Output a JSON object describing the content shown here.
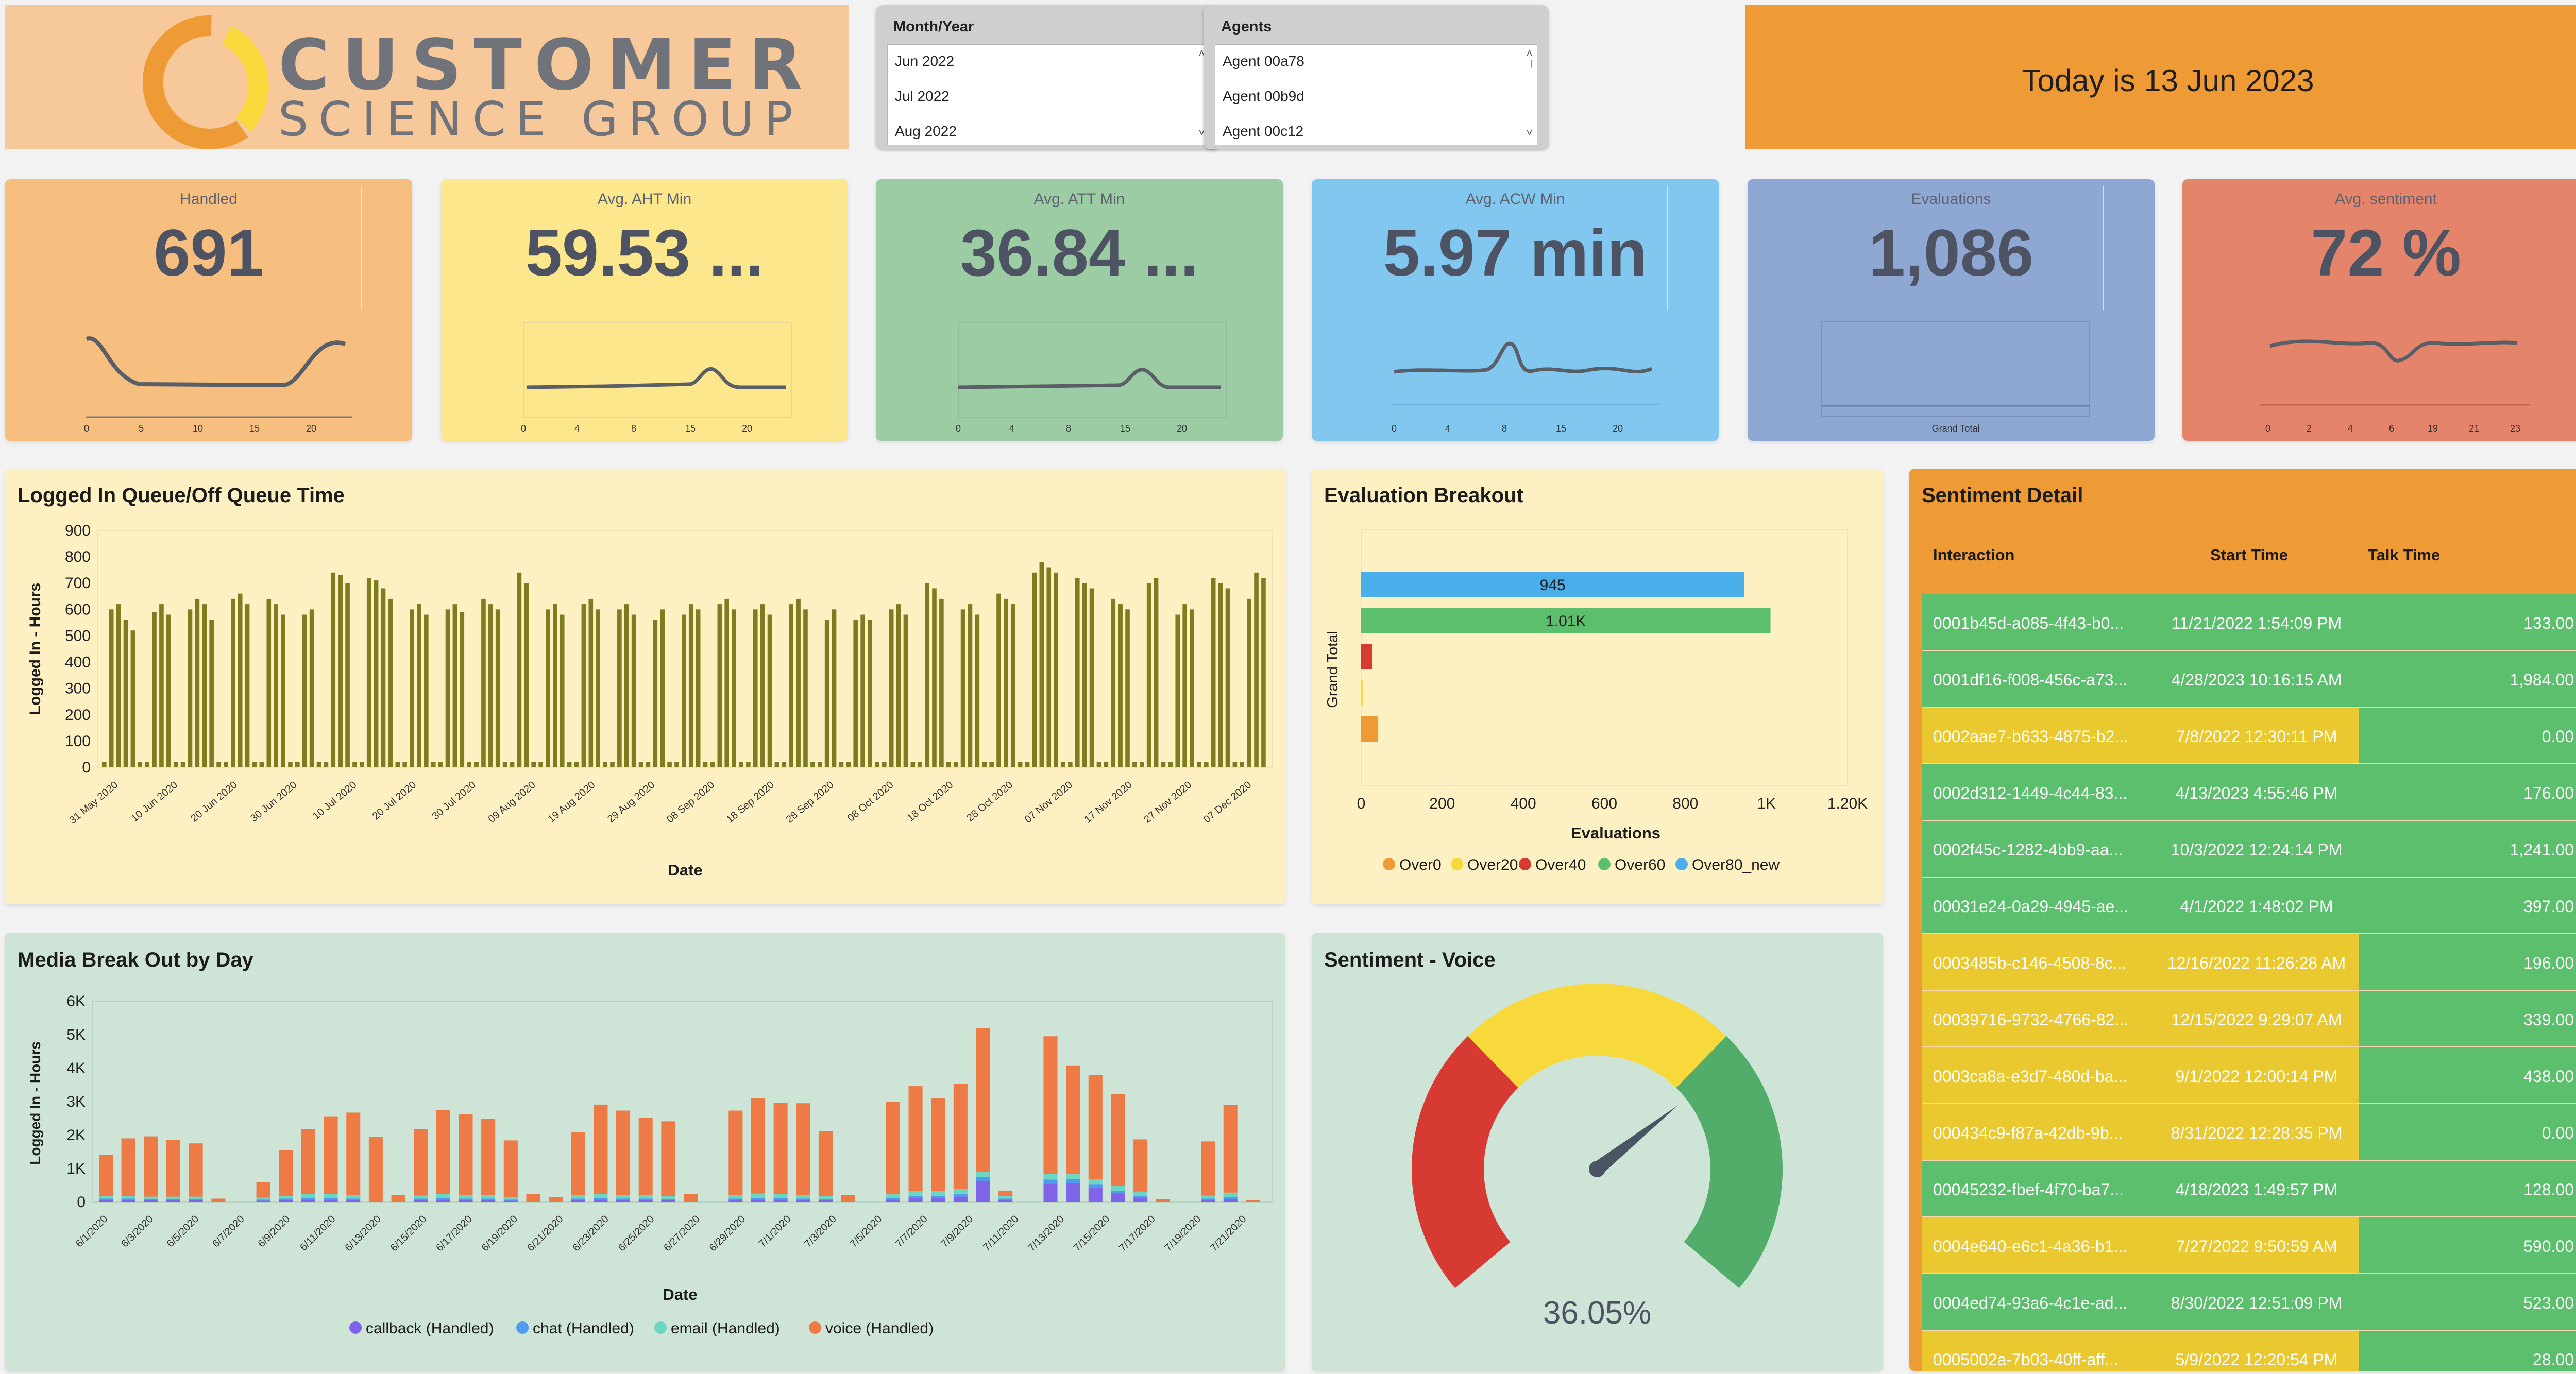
{
  "logo": {
    "line1": "CUSTOMER",
    "line2": "SCIENCE GROUP"
  },
  "filters": {
    "month": {
      "title": "Month/Year",
      "items": [
        "Jun 2022",
        "Jul 2022",
        "Aug 2022"
      ]
    },
    "agents": {
      "title": "Agents",
      "items": [
        "Agent 00a78",
        "Agent 00b9d",
        "Agent 00c12"
      ]
    }
  },
  "today": "Today is 13 Jun 2023",
  "colors": {
    "orange_light": "#f6bf80",
    "yellow": "#fce78c",
    "green": "#9ccca4",
    "blue": "#81c7f0",
    "slate": "#8ea8d3",
    "salmon": "#e4856b",
    "gauge_red": "#d63a33",
    "gauge_yellow": "#f8d93c",
    "gauge_green": "#52ad6b",
    "bar_olive": "#7d7d1f",
    "voice": "#ee7a45",
    "callback": "#7f63e8",
    "chat": "#4f9bf0",
    "email": "#6dd6c2",
    "row_green": "#5cbf6d",
    "row_yellow": "#eac830"
  },
  "kpis": [
    {
      "label": "Handled",
      "value": "691",
      "ticks": [
        "0",
        "5",
        "10",
        "15",
        "20"
      ]
    },
    {
      "label": "Avg. AHT Min",
      "value": "59.53 ...",
      "ticks": [
        "0",
        "4",
        "8",
        "15",
        "20"
      ]
    },
    {
      "label": "Avg. ATT Min",
      "value": "36.84 ...",
      "ticks": [
        "0",
        "4",
        "8",
        "15",
        "20"
      ]
    },
    {
      "label": "Avg. ACW Min",
      "value": "5.97 min",
      "ticks": [
        "0",
        "4",
        "8",
        "15",
        "20"
      ]
    },
    {
      "label": "Evaluations",
      "value": "1,086",
      "ticks": [
        "Grand Total"
      ]
    },
    {
      "label": "Avg. sentiment",
      "value": "72 %",
      "ticks": [
        "0",
        "2",
        "4",
        "6",
        "19",
        "21",
        "23"
      ]
    }
  ],
  "chart_data": [
    {
      "type": "bar",
      "title": "Logged In Queue/Off Queue Time",
      "xlabel": "Date",
      "ylabel": "Logged In - Hours",
      "ylim": [
        0,
        900
      ],
      "yticks": [
        "0",
        "100",
        "200",
        "300",
        "400",
        "500",
        "600",
        "700",
        "800",
        "900"
      ],
      "xticklabels": [
        "31 May 2020",
        "10 Jun 2020",
        "20 Jun 2020",
        "30 Jun 2020",
        "10 Jul 2020",
        "20 Jul 2020",
        "30 Jul 2020",
        "09 Aug 2020",
        "19 Aug 2020",
        "29 Aug 2020",
        "08 Sep 2020",
        "18 Sep 2020",
        "28 Sep 2020",
        "08 Oct 2020",
        "18 Oct 2020",
        "28 Oct 2020",
        "07 Nov 2020",
        "17 Nov 2020",
        "27 Nov 2020",
        "07 Dec 2020"
      ],
      "values": [
        20,
        600,
        620,
        560,
        520,
        20,
        20,
        590,
        620,
        580,
        20,
        20,
        600,
        640,
        620,
        560,
        20,
        20,
        640,
        660,
        620,
        20,
        20,
        640,
        620,
        580,
        20,
        20,
        580,
        600,
        20,
        20,
        740,
        730,
        700,
        20,
        20,
        720,
        710,
        680,
        640,
        20,
        20,
        600,
        620,
        580,
        20,
        20,
        600,
        620,
        590,
        20,
        20,
        640,
        620,
        600,
        20,
        20,
        740,
        700,
        20,
        20,
        600,
        620,
        580,
        20,
        20,
        620,
        640,
        600,
        20,
        20,
        600,
        620,
        580,
        20,
        20,
        560,
        600,
        20,
        20,
        580,
        620,
        600,
        20,
        20,
        620,
        640,
        600,
        20,
        20,
        600,
        620,
        580,
        20,
        20,
        620,
        640,
        600,
        20,
        20,
        560,
        600,
        20,
        20,
        560,
        580,
        560,
        20,
        20,
        600,
        620,
        580,
        20,
        20,
        700,
        680,
        640,
        20,
        20,
        600,
        620,
        580,
        20,
        20,
        660,
        640,
        620,
        20,
        20,
        740,
        780,
        760,
        740,
        20,
        20,
        720,
        700,
        680,
        20,
        20,
        640,
        620,
        600,
        20,
        20,
        700,
        720,
        20,
        20,
        580,
        620,
        600,
        20,
        20,
        720,
        700,
        680,
        20,
        20,
        640,
        740,
        720
      ]
    },
    {
      "type": "bar",
      "orientation": "horizontal",
      "title": "Evaluation Breakout",
      "xlabel": "Evaluations",
      "ylabel": "Grand Total",
      "xlim": [
        0,
        1200
      ],
      "xticks": [
        "0",
        "200",
        "400",
        "600",
        "800",
        "1K",
        "1.20K"
      ],
      "series": [
        {
          "name": "Over0",
          "value": 42,
          "color": "#ee9a35"
        },
        {
          "name": "Over20",
          "value": 4,
          "color": "#f8d93c"
        },
        {
          "name": "Over40",
          "value": 28,
          "color": "#d63a33"
        },
        {
          "name": "Over60",
          "value": 1010,
          "color": "#5cbf6d",
          "label": "1.01K"
        },
        {
          "name": "Over80_new",
          "value": 945,
          "color": "#4aaeea",
          "label": "945"
        }
      ]
    },
    {
      "type": "bar",
      "stacked": true,
      "title": "Media Break Out by Day",
      "xlabel": "Date",
      "ylabel": "Logged In - Hours",
      "ylim": [
        0,
        6000
      ],
      "yticks": [
        "0",
        "1K",
        "2K",
        "3K",
        "4K",
        "5K",
        "6K"
      ],
      "xticklabels": [
        "6/1/2020",
        "6/3/2020",
        "6/5/2020",
        "6/7/2020",
        "6/9/2020",
        "6/11/2020",
        "6/13/2020",
        "6/15/2020",
        "6/17/2020",
        "6/19/2020",
        "6/21/2020",
        "6/23/2020",
        "6/25/2020",
        "6/27/2020",
        "6/29/2020",
        "7/1/2020",
        "7/3/2020",
        "7/5/2020",
        "7/7/2020",
        "7/9/2020",
        "7/11/2020",
        "7/13/2020",
        "7/15/2020",
        "7/17/2020",
        "7/19/2020",
        "7/21/2020"
      ],
      "series": [
        {
          "name": "callback (Handled)",
          "color": "#7f63e8",
          "values": [
            60,
            60,
            50,
            50,
            50,
            0,
            0,
            40,
            60,
            70,
            70,
            60,
            0,
            0,
            60,
            70,
            60,
            60,
            40,
            0,
            0,
            60,
            70,
            60,
            60,
            50,
            0,
            0,
            60,
            70,
            70,
            60,
            50,
            0,
            0,
            70,
            120,
            120,
            160,
            620,
            60,
            0,
            550,
            560,
            420,
            260,
            130,
            0,
            0,
            60,
            90,
            0
          ]
        },
        {
          "name": "chat (Handled)",
          "color": "#4f9bf0",
          "values": [
            40,
            40,
            40,
            40,
            40,
            0,
            0,
            30,
            40,
            50,
            50,
            40,
            0,
            0,
            40,
            50,
            40,
            40,
            30,
            0,
            0,
            40,
            50,
            40,
            40,
            40,
            0,
            0,
            40,
            50,
            50,
            40,
            40,
            0,
            0,
            50,
            60,
            60,
            70,
            120,
            40,
            0,
            120,
            120,
            100,
            80,
            60,
            0,
            0,
            40,
            60,
            0
          ]
        },
        {
          "name": "email (Handled)",
          "color": "#6dd6c2",
          "values": [
            80,
            80,
            70,
            70,
            70,
            0,
            0,
            60,
            80,
            120,
            120,
            100,
            0,
            0,
            90,
            120,
            100,
            100,
            70,
            0,
            0,
            100,
            120,
            110,
            100,
            90,
            0,
            0,
            110,
            130,
            120,
            110,
            90,
            0,
            0,
            110,
            150,
            150,
            160,
            160,
            80,
            0,
            170,
            150,
            160,
            140,
            120,
            0,
            0,
            90,
            130,
            0
          ]
        },
        {
          "name": "voice (Handled)",
          "color": "#ee7a45",
          "values": [
            1220,
            1720,
            1800,
            1700,
            1590,
            100,
            0,
            470,
            1360,
            1930,
            2320,
            2470,
            1950,
            200,
            1980,
            2500,
            2420,
            2280,
            1700,
            240,
            150,
            1890,
            2670,
            2520,
            2320,
            2230,
            240,
            0,
            2520,
            2850,
            2720,
            2740,
            1940,
            200,
            0,
            2770,
            3130,
            2770,
            3140,
            4300,
            160,
            0,
            4110,
            3250,
            3110,
            2750,
            1560,
            80,
            0,
            1620,
            2620,
            60
          ]
        }
      ]
    },
    {
      "type": "gauge",
      "title": "Sentiment - Voice",
      "value": 36.05,
      "value_label": "36.05%",
      "bands": [
        {
          "color": "#d63a33",
          "share": 0.33
        },
        {
          "color": "#f8d93c",
          "share": 0.34
        },
        {
          "color": "#52ad6b",
          "share": 0.33
        }
      ]
    }
  ],
  "media_legend": [
    "callback (Handled)",
    "chat (Handled)",
    "email (Handled)",
    "voice (Handled)"
  ],
  "eval_legend": [
    "Over0",
    "Over20",
    "Over40",
    "Over60",
    "Over80_new"
  ],
  "sentiment": {
    "title": "Sentiment Detail",
    "columns": [
      "Interaction",
      "Start Time",
      "Talk Time"
    ],
    "rows": [
      {
        "id": "0001b45d-a085-4f43-b0...",
        "start": "11/21/2022 1:54:09 PM",
        "talk": "133.00",
        "color": "#5cbf6d"
      },
      {
        "id": "0001df16-f008-456c-a73...",
        "start": "4/28/2023 10:16:15 AM",
        "talk": "1,984.00",
        "color": "#5cbf6d"
      },
      {
        "id": "0002aae7-b633-4875-b2...",
        "start": "7/8/2022 12:30:11 PM",
        "talk": "0.00",
        "color": "#eac830"
      },
      {
        "id": "0002d312-1449-4c44-83...",
        "start": "4/13/2023 4:55:46 PM",
        "talk": "176.00",
        "color": "#5cbf6d"
      },
      {
        "id": "0002f45c-1282-4bb9-aa...",
        "start": "10/3/2022 12:24:14 PM",
        "talk": "1,241.00",
        "color": "#5cbf6d"
      },
      {
        "id": "00031e24-0a29-4945-ae...",
        "start": "4/1/2022 1:48:02 PM",
        "talk": "397.00",
        "color": "#5cbf6d"
      },
      {
        "id": "0003485b-c146-4508-8c...",
        "start": "12/16/2022 11:26:28 AM",
        "talk": "196.00",
        "color": "#eac830"
      },
      {
        "id": "00039716-9732-4766-82...",
        "start": "12/15/2022 9:29:07 AM",
        "talk": "339.00",
        "color": "#eac830"
      },
      {
        "id": "0003ca8a-e3d7-480d-ba...",
        "start": "9/1/2022 12:00:14 PM",
        "talk": "438.00",
        "color": "#eac830"
      },
      {
        "id": "000434c9-f87a-42db-9b...",
        "start": "8/31/2022 12:28:35 PM",
        "talk": "0.00",
        "color": "#eac830"
      },
      {
        "id": "00045232-fbef-4f70-ba7...",
        "start": "4/18/2023 1:49:57 PM",
        "talk": "128.00",
        "color": "#5cbf6d"
      },
      {
        "id": "0004e640-e6c1-4a36-b1...",
        "start": "7/27/2022 9:50:59 AM",
        "talk": "590.00",
        "color": "#eac830"
      },
      {
        "id": "0004ed74-93a6-4c1e-ad...",
        "start": "8/30/2022 12:51:09 PM",
        "talk": "523.00",
        "color": "#5cbf6d"
      },
      {
        "id": "0005002a-7b03-40ff-aff...",
        "start": "5/9/2022 12:20:54 PM",
        "talk": "28.00",
        "color": "#eac830"
      }
    ]
  }
}
